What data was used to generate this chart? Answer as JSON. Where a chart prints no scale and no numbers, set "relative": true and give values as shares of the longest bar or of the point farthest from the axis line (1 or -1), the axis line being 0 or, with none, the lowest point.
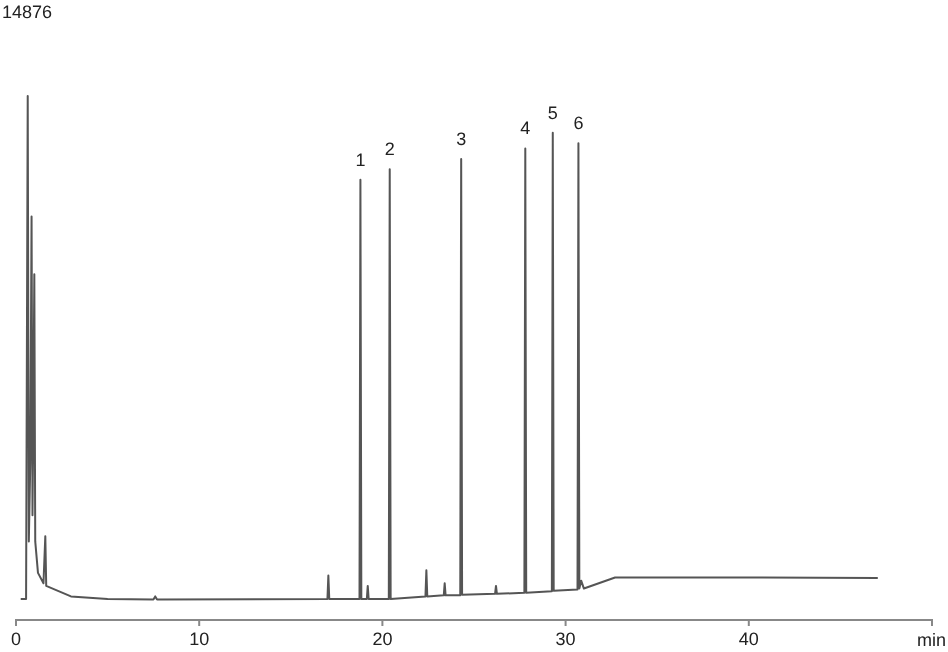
{
  "chart_data": {
    "type": "line",
    "relative": true,
    "xlabel": "min",
    "xlim": [
      0,
      50
    ],
    "xticks": [
      0,
      10,
      20,
      30,
      40
    ],
    "annotations": [
      "14876",
      {
        "text": "1",
        "x": 18.8,
        "y": 0.84
      },
      {
        "text": "2",
        "x": 20.4,
        "y": 0.86
      },
      {
        "text": "3",
        "x": 24.3,
        "y": 0.88
      },
      {
        "text": "4",
        "x": 27.8,
        "y": 0.9
      },
      {
        "text": "5",
        "x": 29.3,
        "y": 0.93
      },
      {
        "text": "6",
        "x": 30.7,
        "y": 0.91
      }
    ],
    "series": [
      {
        "color": "#555555",
        "x": [
          0.3,
          0.55,
          0.64,
          0.7,
          0.78,
          0.85,
          0.9,
          0.95,
          1.0,
          1.05,
          1.2,
          1.5,
          1.6,
          1.65,
          2.0,
          3,
          5,
          7.5,
          7.6,
          7.7,
          17.0,
          17.05,
          17.1,
          18.75,
          18.8,
          18.85,
          19.15,
          19.2,
          19.25,
          20.35,
          20.4,
          20.45,
          22.35,
          22.4,
          22.45,
          23.35,
          23.4,
          23.45,
          24.25,
          24.3,
          24.35,
          26.15,
          26.2,
          26.25,
          27.75,
          27.8,
          27.85,
          29.25,
          29.3,
          29.35,
          30.65,
          30.7,
          30.75,
          30.85,
          31.0,
          32.7,
          40,
          47
        ],
        "values": [
          0.04,
          0.04,
          1.0,
          0.15,
          0.3,
          0.77,
          0.2,
          0.4,
          0.66,
          0.15,
          0.09,
          0.07,
          0.16,
          0.065,
          0.06,
          0.045,
          0.04,
          0.039,
          0.045,
          0.039,
          0.04,
          0.085,
          0.04,
          0.04,
          0.84,
          0.04,
          0.04,
          0.065,
          0.04,
          0.04,
          0.86,
          0.04,
          0.045,
          0.095,
          0.045,
          0.047,
          0.07,
          0.047,
          0.047,
          0.88,
          0.048,
          0.05,
          0.065,
          0.05,
          0.052,
          0.9,
          0.052,
          0.055,
          0.93,
          0.056,
          0.058,
          0.91,
          0.06,
          0.075,
          0.06,
          0.081,
          0.081,
          0.08
        ]
      }
    ]
  }
}
